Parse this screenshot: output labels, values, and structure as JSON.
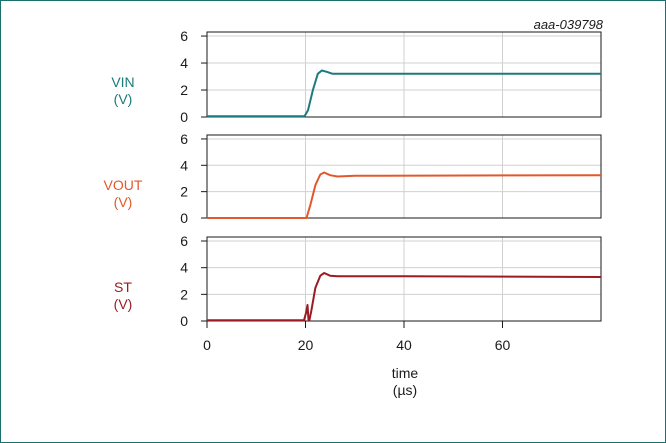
{
  "figure_id": "aaa-039798",
  "chart_data": {
    "type": "line",
    "xlabel": "time",
    "xunit": "(µs)",
    "xlim": [
      0,
      80
    ],
    "xticks": [
      0,
      20,
      40,
      60
    ],
    "grid": true,
    "panels": [
      {
        "name": "VIN",
        "unit": "(V)",
        "color": "#1b7a7c",
        "ylim": [
          0,
          6.3
        ],
        "yticks": [
          0,
          2,
          4,
          6
        ],
        "points": [
          [
            0,
            0.05
          ],
          [
            19.8,
            0.05
          ],
          [
            20.5,
            0.5
          ],
          [
            21.5,
            2.0
          ],
          [
            22.5,
            3.2
          ],
          [
            23.3,
            3.45
          ],
          [
            24.3,
            3.35
          ],
          [
            25.5,
            3.2
          ],
          [
            28,
            3.2
          ],
          [
            80,
            3.2
          ]
        ]
      },
      {
        "name": "VOUT",
        "unit": "(V)",
        "color": "#e3582b",
        "ylim": [
          0,
          6.3
        ],
        "yticks": [
          0,
          2,
          4,
          6
        ],
        "points": [
          [
            0,
            0.0
          ],
          [
            20.2,
            0.0
          ],
          [
            21.0,
            1.0
          ],
          [
            22.0,
            2.5
          ],
          [
            23.0,
            3.3
          ],
          [
            23.8,
            3.45
          ],
          [
            25.0,
            3.25
          ],
          [
            26.5,
            3.15
          ],
          [
            30,
            3.2
          ],
          [
            80,
            3.25
          ]
        ]
      },
      {
        "name": "ST",
        "unit": "(V)",
        "color": "#9c1b22",
        "ylim": [
          0,
          6.3
        ],
        "yticks": [
          0,
          2,
          4,
          6
        ],
        "points": [
          [
            0,
            0.05
          ],
          [
            19.7,
            0.05
          ],
          [
            20.1,
            0.6
          ],
          [
            20.4,
            1.2
          ],
          [
            20.6,
            0.1
          ],
          [
            20.8,
            0.05
          ],
          [
            21.2,
            0.8
          ],
          [
            22.0,
            2.5
          ],
          [
            23.0,
            3.4
          ],
          [
            23.8,
            3.6
          ],
          [
            25.0,
            3.4
          ],
          [
            26.5,
            3.35
          ],
          [
            40,
            3.35
          ],
          [
            80,
            3.3
          ]
        ]
      }
    ]
  }
}
